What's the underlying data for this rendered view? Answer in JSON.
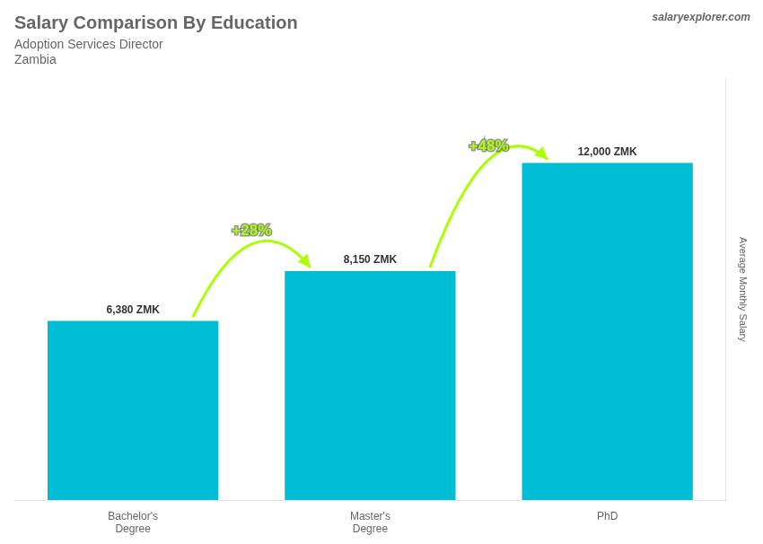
{
  "chart_data": {
    "type": "bar",
    "title": "Salary Comparison By Education",
    "subtitle": [
      "Adoption Services Director",
      "Zambia"
    ],
    "source": "salaryexplorer.com",
    "y_label": "Average Monthly Salary",
    "categories": [
      "Bachelor's\nDegree",
      "Master's\nDegree",
      "PhD"
    ],
    "values": [
      6380,
      8150,
      12000
    ],
    "value_labels": [
      "6,380 ZMK",
      "8,150 ZMK",
      "12,000 ZMK"
    ],
    "data_labels": true,
    "color": "#00bcd4",
    "annotations": [
      {
        "text": "+28%",
        "color": "#aaff00"
      },
      {
        "text": "+48%",
        "color": "#aaff00"
      }
    ],
    "ylim": [
      0,
      15000
    ],
    "tick_labels": "x",
    "grid": false
  }
}
